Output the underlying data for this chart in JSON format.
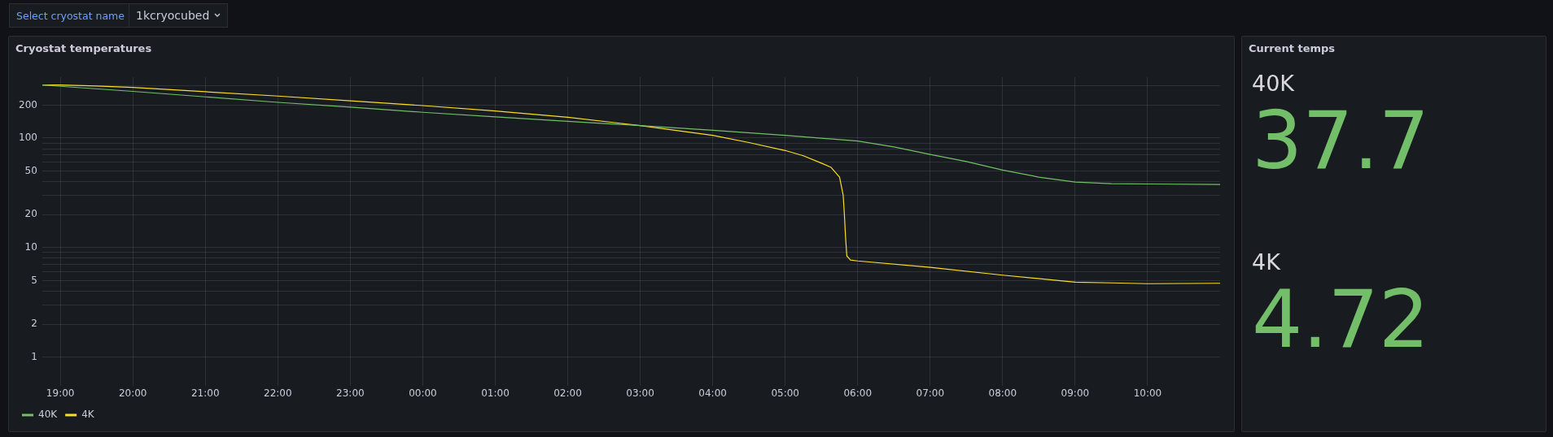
{
  "chart_data": [
    {
      "type": "line",
      "title": "Cryostat temperatures",
      "annotations": [
        "Select cryostat name",
        "1kcryocubed"
      ],
      "log": true,
      "grid": true,
      "legend": "bottom left",
      "marker": "none",
      "line_style": "solid",
      "xlim": [
        "2000-01-01T18:45",
        "2000-01-02T11:00"
      ],
      "xticks": [
        {
          "value": "2000-01-01T19:00",
          "label": "19:00"
        },
        {
          "value": "2000-01-01T20:00",
          "label": "20:00"
        },
        {
          "value": "2000-01-01T21:00",
          "label": "21:00"
        },
        {
          "value": "2000-01-01T22:00",
          "label": "22:00"
        },
        {
          "value": "2000-01-01T23:00",
          "label": "23:00"
        },
        {
          "value": "2000-01-02T00:00",
          "label": "00:00"
        },
        {
          "value": "2000-01-02T01:00",
          "label": "01:00"
        },
        {
          "value": "2000-01-02T02:00",
          "label": "02:00"
        },
        {
          "value": "2000-01-02T03:00",
          "label": "03:00"
        },
        {
          "value": "2000-01-02T04:00",
          "label": "04:00"
        },
        {
          "value": "2000-01-02T05:00",
          "label": "05:00"
        },
        {
          "value": "2000-01-02T06:00",
          "label": "06:00"
        },
        {
          "value": "2000-01-02T07:00",
          "label": "07:00"
        },
        {
          "value": "2000-01-02T08:00",
          "label": "08:00"
        },
        {
          "value": "2000-01-02T09:00",
          "label": "09:00"
        },
        {
          "value": "2000-01-02T10:00",
          "label": "10:00"
        }
      ],
      "ylim": [
        0.55,
        360
      ],
      "yticks": [
        1,
        2,
        {
          "value": 3,
          "label": null
        },
        {
          "value": 4,
          "label": null
        },
        5,
        {
          "value": 6,
          "label": null
        },
        {
          "value": 7,
          "label": null
        },
        {
          "value": 8,
          "label": null
        },
        {
          "value": 9,
          "label": null
        },
        10,
        20,
        {
          "value": 30,
          "label": null
        },
        {
          "value": 40,
          "label": null
        },
        50,
        {
          "value": 60,
          "label": null
        },
        {
          "value": 70,
          "label": null
        },
        {
          "value": 80,
          "label": null
        },
        {
          "value": 90,
          "label": null
        },
        100,
        200,
        {
          "value": 300,
          "label": null
        }
      ],
      "series": [
        {
          "name": "40K",
          "color": "#73bf69",
          "x": [
            "2000-01-01T18:45",
            "2000-01-01T19:00",
            "2000-01-01T20:00",
            "2000-01-01T21:00",
            "2000-01-01T22:00",
            "2000-01-01T23:00",
            "2000-01-02T00:00",
            "2000-01-02T01:00",
            "2000-01-02T02:00",
            "2000-01-02T03:00",
            "2000-01-02T04:00",
            "2000-01-02T05:00",
            "2000-01-02T06:00",
            "2000-01-02T06:30",
            "2000-01-02T07:00",
            "2000-01-02T07:30",
            "2000-01-02T08:00",
            "2000-01-02T08:30",
            "2000-01-02T09:00",
            "2000-01-02T09:30",
            "2000-01-02T10:00",
            "2000-01-02T11:00"
          ],
          "values": [
            305,
            297,
            267,
            238,
            212,
            192,
            172,
            156,
            142,
            130,
            118,
            106,
            94,
            83,
            71,
            61,
            51,
            44,
            39.7,
            38.4,
            38.1,
            37.7
          ]
        },
        {
          "name": "4K",
          "color": "#fade2a",
          "x": [
            "2000-01-01T18:45",
            "2000-01-01T19:00",
            "2000-01-01T19:30",
            "2000-01-01T20:00",
            "2000-01-01T21:00",
            "2000-01-01T22:00",
            "2000-01-01T23:00",
            "2000-01-02T00:00",
            "2000-01-02T01:00",
            "2000-01-02T02:00",
            "2000-01-02T03:00",
            "2000-01-02T04:00",
            "2000-01-02T04:30",
            "2000-01-02T05:00",
            "2000-01-02T05:15",
            "2000-01-02T05:30",
            "2000-01-02T05:38",
            "2000-01-02T05:45",
            "2000-01-02T05:48",
            "2000-01-02T05:49",
            "2000-01-02T05:50",
            "2000-01-02T05:51",
            "2000-01-02T05:54",
            "2000-01-02T06:00",
            "2000-01-02T07:00",
            "2000-01-02T08:00",
            "2000-01-02T09:00",
            "2000-01-02T09:30",
            "2000-01-02T10:00",
            "2000-01-02T11:00"
          ],
          "values": [
            305,
            305,
            299,
            290,
            265,
            242,
            219,
            198,
            177,
            155,
            130,
            106,
            91,
            77,
            69,
            59,
            54,
            44,
            30,
            20,
            12.2,
            8.4,
            7.7,
            7.55,
            6.6,
            5.6,
            4.84,
            4.76,
            4.68,
            4.72
          ]
        }
      ]
    },
    {
      "type": "other",
      "title": "Current temps",
      "categories": [
        "40K",
        "4K"
      ],
      "values": [
        37.7,
        4.72
      ],
      "data_labels": true
    }
  ]
}
